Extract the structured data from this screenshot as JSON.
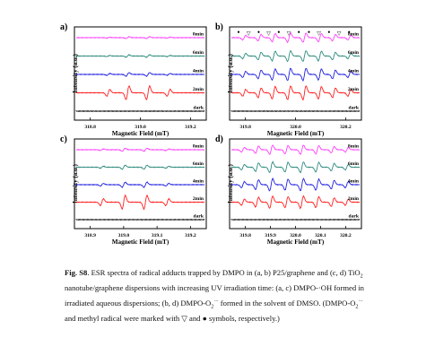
{
  "figure": {
    "panels": [
      {
        "letter": "a)",
        "ylabel": "Intensity (a.u.)",
        "xlabel": "Magnetic Field (mT)",
        "ticks": [
          "318.8",
          "319.0",
          "319.2"
        ],
        "traces": [
          {
            "label": "8min",
            "color": "#ff40ff"
          },
          {
            "label": "6min",
            "color": "#2e8b7f"
          },
          {
            "label": "4min",
            "color": "#2020e0"
          },
          {
            "label": "2min",
            "color": "#ff2020"
          },
          {
            "label": "dark",
            "color": "#000000"
          }
        ]
      },
      {
        "letter": "b)",
        "ylabel": "Intensity (a.u.)",
        "xlabel": "Magnetic Field (mT)",
        "ticks": [
          "319.8",
          "320.0",
          "320.2"
        ],
        "markers": [
          "•",
          "▽",
          "•",
          "▽",
          "•",
          "▽",
          "•",
          "•",
          "▽",
          "•",
          "▽",
          "•"
        ],
        "traces": [
          {
            "label": "8min",
            "color": "#ff40ff"
          },
          {
            "label": "6min",
            "color": "#2e8b7f"
          },
          {
            "label": "4min",
            "color": "#2020e0"
          },
          {
            "label": "2min",
            "color": "#ff2020"
          },
          {
            "label": "dark",
            "color": "#000000"
          }
        ]
      },
      {
        "letter": "c)",
        "ylabel": "Intensity (a.u.)",
        "xlabel": "Magnetic Field (mT)",
        "ticks": [
          "318.9",
          "319.0",
          "319.1",
          "319.2"
        ],
        "traces": [
          {
            "label": "8min",
            "color": "#ff40ff"
          },
          {
            "label": "6min",
            "color": "#2e8b7f"
          },
          {
            "label": "4min",
            "color": "#2020e0"
          },
          {
            "label": "2min",
            "color": "#ff2020"
          },
          {
            "label": "dark",
            "color": "#000000"
          }
        ]
      },
      {
        "letter": "d)",
        "ylabel": "Intensity (a.u.)",
        "xlabel": "Magnetic Field (mT)",
        "ticks": [
          "319.8",
          "319.9",
          "320.0",
          "320.1",
          "320.2"
        ],
        "traces": [
          {
            "label": "8min",
            "color": "#ff40ff"
          },
          {
            "label": "6min",
            "color": "#2e8b7f"
          },
          {
            "label": "4min",
            "color": "#2020e0"
          },
          {
            "label": "2min",
            "color": "#ff2020"
          },
          {
            "label": "dark",
            "color": "#000000"
          }
        ]
      }
    ]
  },
  "caption": {
    "fig_label": "Fig. S8",
    "p1": ". ESR spectra of radical adducts trapped by DMPO in (a, b) P25/graphene and (c, d) TiO",
    "sub2": "2",
    "p2": " nanotube/graphene dispersions with increasing UV irradiation time: (a, c) DMPO-·OH formed in irradiated aqueous dispersions; (b, d) DMPO-O",
    "sub2b": "2",
    "sup_rad": "·−",
    "p3": " formed in the solvent of DMSO. (DMPO-O",
    "sub2c": "2",
    "sup_rad2": "·−",
    "p4": " and methyl radical were marked with ▽ and ● symbols, respectively.)"
  }
}
